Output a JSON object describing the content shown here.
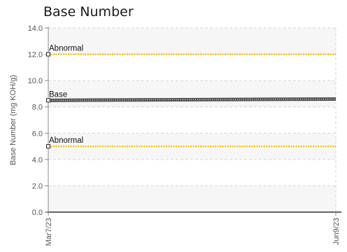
{
  "chart_data": {
    "type": "line",
    "title": "Base Number",
    "ylabel": "Base Number (mg KOH/g)",
    "xlabel": "",
    "ylim": [
      0,
      14
    ],
    "y_ticks": [
      "0.0",
      "2.0",
      "4.0",
      "6.0",
      "8.0",
      "10.0",
      "12.0",
      "14.0"
    ],
    "x_ticks": [
      "Mar7/23",
      "Jun9/23"
    ],
    "grid": true,
    "series": [
      {
        "name": "Abnormal",
        "color": "#f2c200",
        "style": "dotted",
        "x": [
          "Mar7/23",
          "Jun9/23"
        ],
        "values": [
          12.0,
          12.0
        ]
      },
      {
        "name": "Base",
        "color": "#555555",
        "style": "solid",
        "x": [
          "Mar7/23",
          "Jun9/23"
        ],
        "values": [
          8.5,
          8.6
        ]
      },
      {
        "name": "Abnormal",
        "color": "#f2c200",
        "style": "dotted",
        "x": [
          "Mar7/23",
          "Jun9/23"
        ],
        "values": [
          5.0,
          5.0
        ]
      }
    ]
  }
}
